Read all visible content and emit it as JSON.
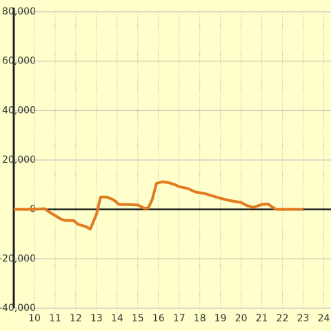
{
  "chart_data": {
    "type": "line",
    "x": [
      9,
      10,
      10.5,
      10.7,
      11,
      11.3,
      11.5,
      11.9,
      12.1,
      12.5,
      12.7,
      13,
      13.2,
      13.5,
      13.8,
      14.1,
      14.5,
      15,
      15.3,
      15.5,
      15.7,
      15.9,
      16.2,
      16.5,
      16.8,
      17,
      17.4,
      17.8,
      18.2,
      18.6,
      19,
      19.5,
      20,
      20.3,
      20.6,
      21,
      21.3,
      21.5,
      21.7,
      22,
      23
    ],
    "series": [
      {
        "color": "#e07b20",
        "values": [
          0,
          0,
          300,
          -1000,
          -2500,
          -4000,
          -4500,
          -4500,
          -6000,
          -7000,
          -8000,
          -2000,
          5000,
          5000,
          4000,
          2000,
          2000,
          1800,
          500,
          500,
          4000,
          10500,
          11200,
          10800,
          10000,
          9200,
          8500,
          7000,
          6500,
          5500,
          4500,
          3500,
          2800,
          1500,
          800,
          2000,
          2200,
          1000,
          0,
          0,
          0
        ]
      }
    ],
    "xlim": [
      9,
      24.35
    ],
    "xticks": [
      10,
      11,
      12,
      13,
      14,
      15,
      16,
      17,
      18,
      19,
      20,
      21,
      22,
      23,
      24
    ],
    "ylim": [
      -40000,
      80000
    ],
    "yticks": [
      {
        "value": -40000,
        "label": "-40,000"
      },
      {
        "value": -20000,
        "label": "-20,000"
      },
      0,
      {
        "value": 20000,
        "label": "20,000"
      },
      {
        "value": 40000,
        "label": "40,000"
      },
      {
        "value": 60000,
        "label": "60,000"
      },
      {
        "value": 80000,
        "label": "80,000"
      }
    ],
    "grid": true
  }
}
